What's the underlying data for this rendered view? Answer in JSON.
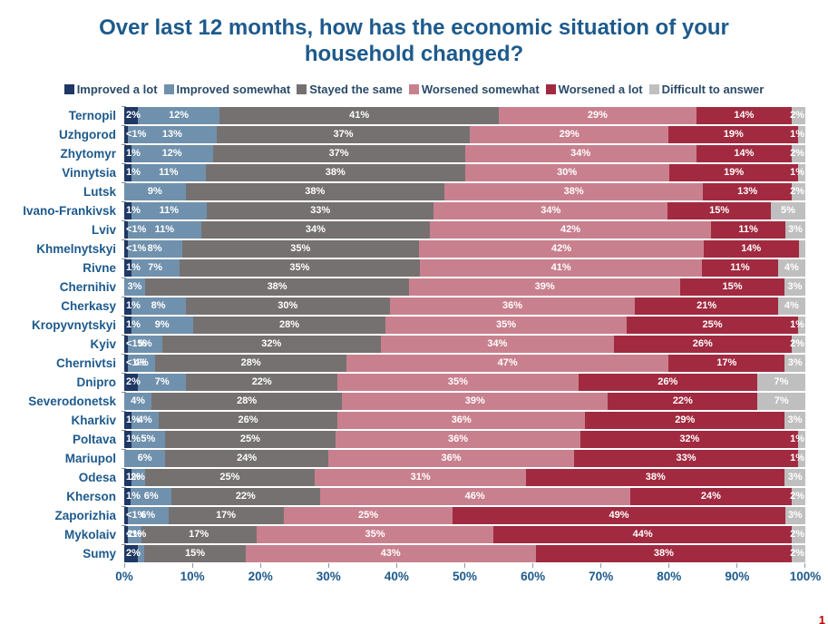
{
  "header": {
    "title": "Over last 12 months, how has the economic situation of your household changed?"
  },
  "legend": [
    {
      "label": "Improved a lot",
      "color": "#1f3864"
    },
    {
      "label": "Improved somewhat",
      "color": "#6f91ad"
    },
    {
      "label": "Stayed the same",
      "color": "#767171"
    },
    {
      "label": "Worsened somewhat",
      "color": "#c9808e"
    },
    {
      "label": "Worsened a lot",
      "color": "#a12a40"
    },
    {
      "label": "Difficult to answer",
      "color": "#bfbfbf"
    }
  ],
  "chart_data": {
    "type": "bar",
    "orientation": "horizontal",
    "stacked": true,
    "unit": "%",
    "title": "Over last 12 months, how has the economic situation of your household changed?",
    "xlim": [
      0,
      100
    ],
    "x_ticks": [
      "0%",
      "10%",
      "20%",
      "30%",
      "40%",
      "50%",
      "60%",
      "70%",
      "80%",
      "90%",
      "100%"
    ],
    "categories": [
      "Ternopil",
      "Uzhgorod",
      "Zhytomyr",
      "Vinnytsia",
      "Lutsk",
      "Ivano-Frankivsk",
      "Lviv",
      "Khmelnytskyi",
      "Rivne",
      "Chernihiv",
      "Cherkasy",
      "Kropyvnytskyi",
      "Kyiv",
      "Chernivtsi",
      "Dnipro",
      "Severodonetsk",
      "Kharkiv",
      "Poltava",
      "Mariupol",
      "Odesa",
      "Kherson",
      "Zaporizhia",
      "Mykolaiv",
      "Sumy"
    ],
    "series": [
      {
        "name": "Improved a lot",
        "color": "#1f3864",
        "values": [
          2,
          0.5,
          1,
          1,
          0,
          1,
          0.5,
          0.5,
          1,
          0,
          1,
          1,
          0.5,
          0.5,
          2,
          0,
          1,
          1,
          0,
          1,
          1,
          0.5,
          0.5,
          2
        ],
        "labels": [
          "2%",
          "<1%",
          "1%",
          "1%",
          "",
          "1%",
          "<1%",
          "<1%",
          "1%",
          "",
          "1%",
          "1%",
          "<1%",
          "<1%",
          "2%",
          "",
          "1%",
          "1%",
          "",
          "1%",
          "1%",
          "<1%",
          "<1%",
          "2%"
        ]
      },
      {
        "name": "Improved somewhat",
        "color": "#6f91ad",
        "values": [
          12,
          13,
          12,
          11,
          9,
          11,
          11,
          8,
          7,
          3,
          8,
          9,
          5,
          4,
          7,
          4,
          4,
          5,
          6,
          2,
          6,
          6,
          2,
          1
        ],
        "labels": [
          "12%",
          "13%",
          "12%",
          "11%",
          "9%",
          "11%",
          "11%",
          "8%",
          "7%",
          "3%",
          "8%",
          "9%",
          "5%",
          "4%",
          "7%",
          "4%",
          "4%",
          "5%",
          "6%",
          "2%",
          "6%",
          "6%",
          "2%",
          ""
        ]
      },
      {
        "name": "Stayed the same",
        "color": "#767171",
        "values": [
          41,
          37,
          37,
          38,
          38,
          33,
          34,
          35,
          35,
          38,
          30,
          28,
          32,
          28,
          22,
          28,
          26,
          25,
          24,
          25,
          22,
          17,
          17,
          15
        ],
        "labels": [
          "41%",
          "37%",
          "37%",
          "38%",
          "38%",
          "33%",
          "34%",
          "35%",
          "35%",
          "38%",
          "30%",
          "28%",
          "32%",
          "28%",
          "22%",
          "28%",
          "26%",
          "25%",
          "24%",
          "25%",
          "22%",
          "17%",
          "17%",
          "15%"
        ]
      },
      {
        "name": "Worsened somewhat",
        "color": "#c9808e",
        "values": [
          29,
          29,
          34,
          30,
          38,
          34,
          42,
          42,
          41,
          39,
          36,
          35,
          34,
          47,
          35,
          39,
          36,
          36,
          36,
          31,
          46,
          25,
          35,
          43
        ],
        "labels": [
          "29%",
          "29%",
          "34%",
          "30%",
          "38%",
          "34%",
          "42%",
          "42%",
          "41%",
          "39%",
          "36%",
          "35%",
          "34%",
          "47%",
          "35%",
          "39%",
          "36%",
          "36%",
          "36%",
          "31%",
          "46%",
          "25%",
          "35%",
          "43%"
        ]
      },
      {
        "name": "Worsened a lot",
        "color": "#a12a40",
        "values": [
          14,
          19,
          14,
          19,
          13,
          15,
          11,
          14,
          11,
          15,
          21,
          25,
          26,
          17,
          26,
          22,
          29,
          32,
          33,
          38,
          24,
          49,
          44,
          38
        ],
        "labels": [
          "14%",
          "19%",
          "14%",
          "19%",
          "13%",
          "15%",
          "11%",
          "14%",
          "11%",
          "15%",
          "21%",
          "25%",
          "26%",
          "17%",
          "26%",
          "22%",
          "29%",
          "32%",
          "33%",
          "38%",
          "24%",
          "49%",
          "44%",
          "38%"
        ]
      },
      {
        "name": "Difficult to answer",
        "color": "#bfbfbf",
        "values": [
          2,
          1,
          2,
          1,
          2,
          5,
          3,
          1,
          4,
          3,
          4,
          1,
          2,
          3,
          7,
          7,
          3,
          1,
          1,
          3,
          2,
          3,
          2,
          2
        ],
        "labels": [
          "2%",
          "1%",
          "2%",
          "1%",
          "2%",
          "5%",
          "3%",
          "",
          "4%",
          "3%",
          "4%",
          "1%",
          "2%",
          "3%",
          "7%",
          "7%",
          "3%",
          "1%",
          "1%",
          "3%",
          "2%",
          "3%",
          "2%",
          "2%"
        ]
      }
    ]
  },
  "footer": {
    "page_mark": "1"
  }
}
